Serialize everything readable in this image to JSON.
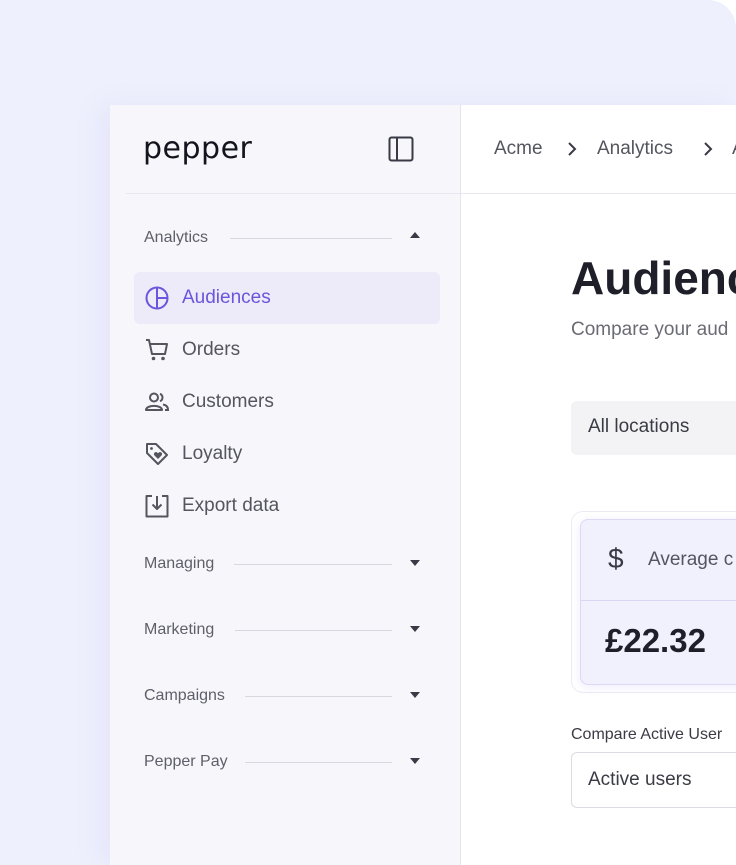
{
  "brand": {
    "logo_text": "pepper"
  },
  "sidebar": {
    "sections": [
      {
        "label": "Analytics",
        "expanded": true
      },
      {
        "label": "Managing",
        "expanded": false
      },
      {
        "label": "Marketing",
        "expanded": false
      },
      {
        "label": "Campaigns",
        "expanded": false
      },
      {
        "label": "Pepper Pay",
        "expanded": false
      }
    ],
    "analytics_items": [
      {
        "label": "Audiences",
        "icon": "pie-chart-icon",
        "active": true
      },
      {
        "label": "Orders",
        "icon": "cart-icon"
      },
      {
        "label": "Customers",
        "icon": "users-icon"
      },
      {
        "label": "Loyalty",
        "icon": "tag-heart-icon"
      },
      {
        "label": "Export data",
        "icon": "download-icon"
      }
    ]
  },
  "breadcrumb": {
    "items": [
      "Acme",
      "Analytics",
      "A"
    ]
  },
  "main": {
    "title": "Audienc",
    "subtitle": "Compare your aud",
    "location_select": {
      "value": "All locations"
    },
    "stat": {
      "label": "Average c",
      "value": "£22.32",
      "icon": "dollar-icon"
    },
    "compare": {
      "label": "Compare Active User",
      "select_value": "Active users"
    }
  },
  "colors": {
    "accent": "#6a55dc",
    "active_bg": "#edeaf9",
    "backdrop": "#eff0fd"
  }
}
